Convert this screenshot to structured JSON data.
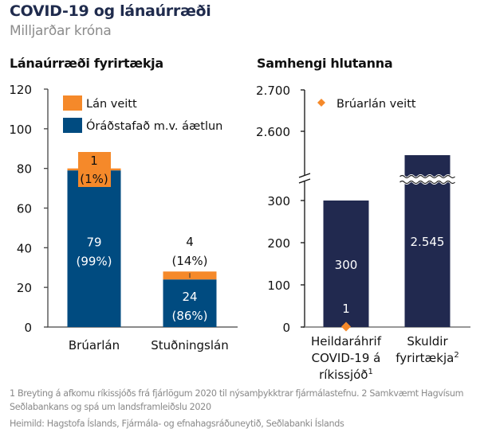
{
  "header": {
    "title": "COVID-19 og lánaúrræði",
    "subtitle": "Milljarðar króna"
  },
  "colors": {
    "orange": "#F5892A",
    "blue": "#004B80",
    "navy": "#21294F",
    "axis": "#444444"
  },
  "chart_data": [
    {
      "type": "bar",
      "stacked": true,
      "title": "Lánaúrræði fyrirtækja",
      "categories": [
        "Brúarlán",
        "Stuðningslán"
      ],
      "series": [
        {
          "name": "Óráðstafað m.v. áætlun",
          "values": [
            79,
            24
          ],
          "labels": [
            "79",
            "24"
          ],
          "pct_labels": [
            "(99%)",
            "(86%)"
          ],
          "color": "#004B80"
        },
        {
          "name": "Lán veitt",
          "values": [
            1,
            4
          ],
          "labels": [
            "1",
            "4"
          ],
          "pct_labels": [
            "(1%)",
            "(14%)"
          ],
          "color": "#F5892A"
        }
      ],
      "ylim": [
        0,
        120
      ],
      "yticks": [
        0,
        20,
        40,
        60,
        80,
        100,
        120
      ],
      "ytick_labels": [
        "0",
        "20",
        "40",
        "60",
        "80",
        "100",
        "120"
      ],
      "legend": [
        {
          "label": "Lán veitt",
          "color": "#F5892A"
        },
        {
          "label": "Óráðstafað m.v. áætlun",
          "color": "#004B80"
        }
      ],
      "legend_position": "top-left",
      "grid": false
    },
    {
      "type": "bar",
      "title": "Samhengi hlutanna",
      "categories": [
        "Heildaráhrif COVID-19 á ríkissjóð¹",
        "Skuldir fyrirtækja²"
      ],
      "category_lines": [
        [
          "Heildaráhrif",
          "COVID-19 á",
          "ríkissjóð¹"
        ],
        [
          "Skuldir",
          "fyrirtækja²"
        ]
      ],
      "values": [
        300,
        2545
      ],
      "value_labels": [
        "300",
        "2.545"
      ],
      "marker_series": {
        "name": "Brúarlán veitt",
        "values": [
          1
        ],
        "labels": [
          "1"
        ],
        "color": "#F5892A",
        "marker": "diamond"
      },
      "axis_break": {
        "lower_max": 330,
        "upper_min": 2530
      },
      "yticks_lower": [
        0,
        100,
        200,
        300
      ],
      "ytick_labels_lower": [
        "0",
        "100",
        "200",
        "300"
      ],
      "yticks_upper": [
        2600,
        2700
      ],
      "ytick_labels_upper": [
        "2.600",
        "2.700"
      ],
      "legend": [
        {
          "label": "Brúarlán veitt",
          "color": "#F5892A",
          "marker": "diamond"
        }
      ],
      "legend_position": "top-left",
      "grid": false
    }
  ],
  "footnotes": {
    "line1": "1 Breyting á afkomu ríkissjóðs frá fjárlögum 2020 til nýsamþykktrar fjármálastefnu. 2 Samkvæmt Hagvísum",
    "line2": "Seðlabankans og spá um landsframleiðslu 2020",
    "source": "Heimild: Hagstofa Íslands, Fjármála- og efnahagsráðuneytið, Seðlabanki Íslands"
  }
}
